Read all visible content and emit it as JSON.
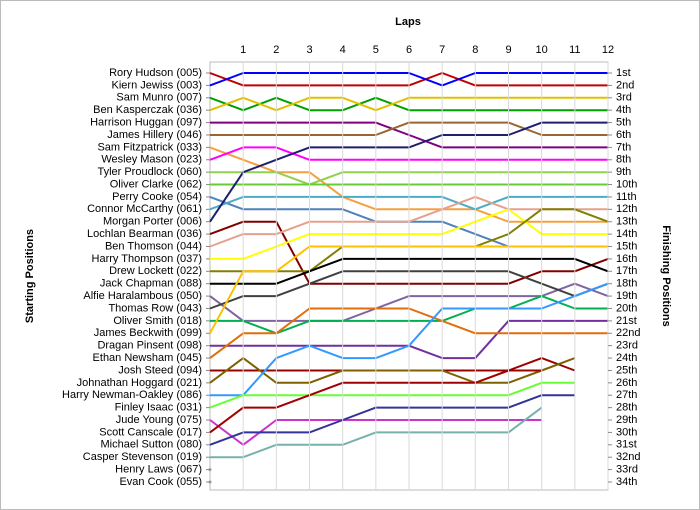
{
  "chart_data": {
    "type": "line",
    "title": "Laps",
    "ylabel": "Starting Positions",
    "y2label": "Finishing Positions",
    "x": [
      0,
      1,
      2,
      3,
      4,
      5,
      6,
      7,
      8,
      9,
      10,
      11,
      12
    ],
    "xlim": [
      0,
      12
    ],
    "xticks": [
      1,
      2,
      3,
      4,
      5,
      6,
      7,
      8,
      9,
      10,
      11,
      12
    ],
    "ylim": [
      1,
      34
    ],
    "y_inverted": true,
    "grid": true,
    "y2_labels": [
      "1st",
      "2nd",
      "3rd",
      "4th",
      "5th",
      "6th",
      "7th",
      "8th",
      "9th",
      "10th",
      "11th",
      "12th",
      "13th",
      "14th",
      "15th",
      "16th",
      "17th",
      "18th",
      "19th",
      "20th",
      "21st",
      "22nd",
      "23rd",
      "24th",
      "25th",
      "26th",
      "27th",
      "28th",
      "29th",
      "30th",
      "31st",
      "32nd",
      "33rd",
      "34th"
    ],
    "series": [
      {
        "name": "Rory Hudson (005)",
        "color": "#c00000",
        "values": [
          1,
          2,
          2,
          2,
          2,
          2,
          2,
          1,
          2,
          2,
          2,
          2,
          2
        ]
      },
      {
        "name": "Kiern Jewiss (003)",
        "color": "#0000ff",
        "values": [
          2,
          1,
          1,
          1,
          1,
          1,
          1,
          2,
          1,
          1,
          1,
          1,
          1
        ]
      },
      {
        "name": "Sam Munro (007)",
        "color": "#00a000",
        "values": [
          3,
          4,
          3,
          4,
          4,
          3,
          4,
          4,
          4,
          4,
          4,
          4,
          4
        ]
      },
      {
        "name": "Ben Kasperczak (036)",
        "color": "#e0c000",
        "values": [
          4,
          3,
          4,
          3,
          3,
          4,
          3,
          3,
          3,
          3,
          3,
          3,
          3
        ]
      },
      {
        "name": "Harrison Huggan (097)",
        "color": "#800080",
        "values": [
          5,
          5,
          5,
          5,
          5,
          5,
          6,
          7,
          7,
          7,
          7,
          7,
          7
        ]
      },
      {
        "name": "James Hillery (046)",
        "color": "#996633",
        "values": [
          6,
          6,
          6,
          6,
          6,
          6,
          5,
          5,
          5,
          5,
          6,
          6,
          6
        ]
      },
      {
        "name": "Sam Fitzpatrick (033)",
        "color": "#f5a040",
        "values": [
          7,
          8,
          9,
          9,
          11,
          12,
          12,
          12,
          12,
          13,
          13,
          13,
          13
        ]
      },
      {
        "name": "Wesley Mason (023)",
        "color": "#ff00ff",
        "values": [
          8,
          7,
          7,
          8,
          8,
          8,
          8,
          8,
          8,
          8,
          8,
          8,
          8
        ]
      },
      {
        "name": "Tyler Proudlock (060)",
        "color": "#92d050",
        "values": [
          9,
          9,
          9,
          10,
          9,
          9,
          9,
          9,
          9,
          9,
          9,
          9,
          9
        ]
      },
      {
        "name": "Oliver Clarke (062)",
        "color": "#66cc33",
        "values": [
          10,
          10,
          10,
          10,
          10,
          10,
          10,
          10,
          10,
          10,
          10,
          10,
          10
        ]
      },
      {
        "name": "Perry Cooke (054)",
        "color": "#4f81bd",
        "values": [
          11,
          12,
          12,
          12,
          12,
          13,
          13,
          13,
          14,
          15,
          null,
          null,
          null
        ]
      },
      {
        "name": "Connor McCarthy (061)",
        "color": "#4bacc6",
        "values": [
          12,
          11,
          11,
          11,
          11,
          11,
          11,
          11,
          12,
          11,
          11,
          11,
          11
        ]
      },
      {
        "name": "Morgan Porter (006)",
        "color": "#1f1f6f",
        "values": [
          13,
          9,
          8,
          7,
          7,
          7,
          7,
          6,
          6,
          6,
          5,
          5,
          5
        ]
      },
      {
        "name": "Lochlan Bearman (036)",
        "color": "#800000",
        "values": [
          14,
          13,
          13,
          18,
          18,
          18,
          18,
          18,
          18,
          18,
          17,
          17,
          16
        ]
      },
      {
        "name": "Ben Thomson (044)",
        "color": "#e6a08c",
        "values": [
          15,
          14,
          14,
          13,
          13,
          13,
          13,
          12,
          11,
          12,
          12,
          12,
          12
        ]
      },
      {
        "name": "Harry Thompson (037)",
        "color": "#ffff00",
        "values": [
          16,
          16,
          15,
          14,
          14,
          14,
          14,
          14,
          13,
          12,
          14,
          14,
          14
        ]
      },
      {
        "name": "Drew Lockett (022)",
        "color": "#808000",
        "values": [
          17,
          17,
          17,
          17,
          15,
          15,
          15,
          15,
          15,
          14,
          12,
          12,
          13
        ]
      },
      {
        "name": "Jack Chapman (088)",
        "color": "#000000",
        "values": [
          18,
          18,
          18,
          17,
          16,
          16,
          16,
          16,
          16,
          16,
          16,
          16,
          17
        ]
      },
      {
        "name": "Alfie Haralambous (050)",
        "color": "#8064a2",
        "values": [
          19,
          21,
          21,
          21,
          21,
          20,
          19,
          19,
          19,
          19,
          19,
          18,
          19
        ]
      },
      {
        "name": "Thomas Row (043)",
        "color": "#404040",
        "values": [
          20,
          19,
          19,
          18,
          17,
          17,
          17,
          17,
          17,
          17,
          18,
          19,
          18
        ]
      },
      {
        "name": "Oliver Smith (018)",
        "color": "#00b050",
        "values": [
          21,
          21,
          22,
          21,
          21,
          21,
          21,
          21,
          20,
          20,
          19,
          20,
          20
        ]
      },
      {
        "name": "James Beckwith (099)",
        "color": "#ffc000",
        "values": [
          22,
          17,
          17,
          15,
          15,
          15,
          15,
          15,
          15,
          15,
          15,
          15,
          15
        ]
      },
      {
        "name": "Dragan Pinsent (098)",
        "color": "#7030a0",
        "values": [
          23,
          23,
          23,
          23,
          23,
          23,
          23,
          24,
          24,
          21,
          21,
          21,
          21
        ]
      },
      {
        "name": "Ethan Newsham (045)",
        "color": "#e46c0a",
        "values": [
          24,
          22,
          22,
          20,
          20,
          20,
          20,
          21,
          22,
          22,
          22,
          22,
          22
        ]
      },
      {
        "name": "Josh Steed (094)",
        "color": "#990000",
        "values": [
          25,
          25,
          25,
          25,
          25,
          25,
          25,
          25,
          25,
          25,
          24,
          25,
          null
        ]
      },
      {
        "name": "Johnathan Hoggard (021)",
        "color": "#7f6000",
        "values": [
          26,
          24,
          26,
          26,
          25,
          25,
          25,
          25,
          26,
          26,
          25,
          24,
          null
        ]
      },
      {
        "name": "Harry Newman-Oakley (086)",
        "color": "#3399ff",
        "values": [
          27,
          27,
          24,
          23,
          24,
          24,
          23,
          20,
          20,
          20,
          20,
          19,
          18
        ]
      },
      {
        "name": "Finley Isaac (031)",
        "color": "#66ff33",
        "values": [
          28,
          27,
          27,
          27,
          27,
          27,
          27,
          27,
          27,
          27,
          26,
          26,
          null
        ]
      },
      {
        "name": "Jude Young (075)",
        "color": "#cc33cc",
        "values": [
          29,
          31,
          29,
          29,
          29,
          29,
          29,
          29,
          29,
          29,
          29,
          null,
          null
        ]
      },
      {
        "name": "Scott Canscale (017)",
        "color": "#a00000",
        "values": [
          30,
          28,
          28,
          27,
          26,
          26,
          26,
          26,
          26,
          25,
          25,
          null,
          null
        ]
      },
      {
        "name": "Michael Sutton (080)",
        "color": "#333399",
        "values": [
          31,
          30,
          30,
          30,
          29,
          28,
          28,
          28,
          28,
          28,
          27,
          27,
          null
        ]
      },
      {
        "name": "Casper Stevenson (019)",
        "color": "#77b2a8",
        "values": [
          32,
          32,
          31,
          31,
          31,
          30,
          30,
          30,
          30,
          30,
          28,
          null,
          null
        ]
      },
      {
        "name": "Henry Laws (067)",
        "color": "#999999",
        "values": [
          33,
          null,
          null,
          null,
          null,
          null,
          null,
          null,
          null,
          null,
          null,
          null,
          null
        ]
      },
      {
        "name": "Evan Cook (055)",
        "color": "#999999",
        "values": [
          34,
          null,
          null,
          null,
          null,
          null,
          null,
          null,
          null,
          null,
          null,
          null,
          null
        ]
      }
    ]
  }
}
